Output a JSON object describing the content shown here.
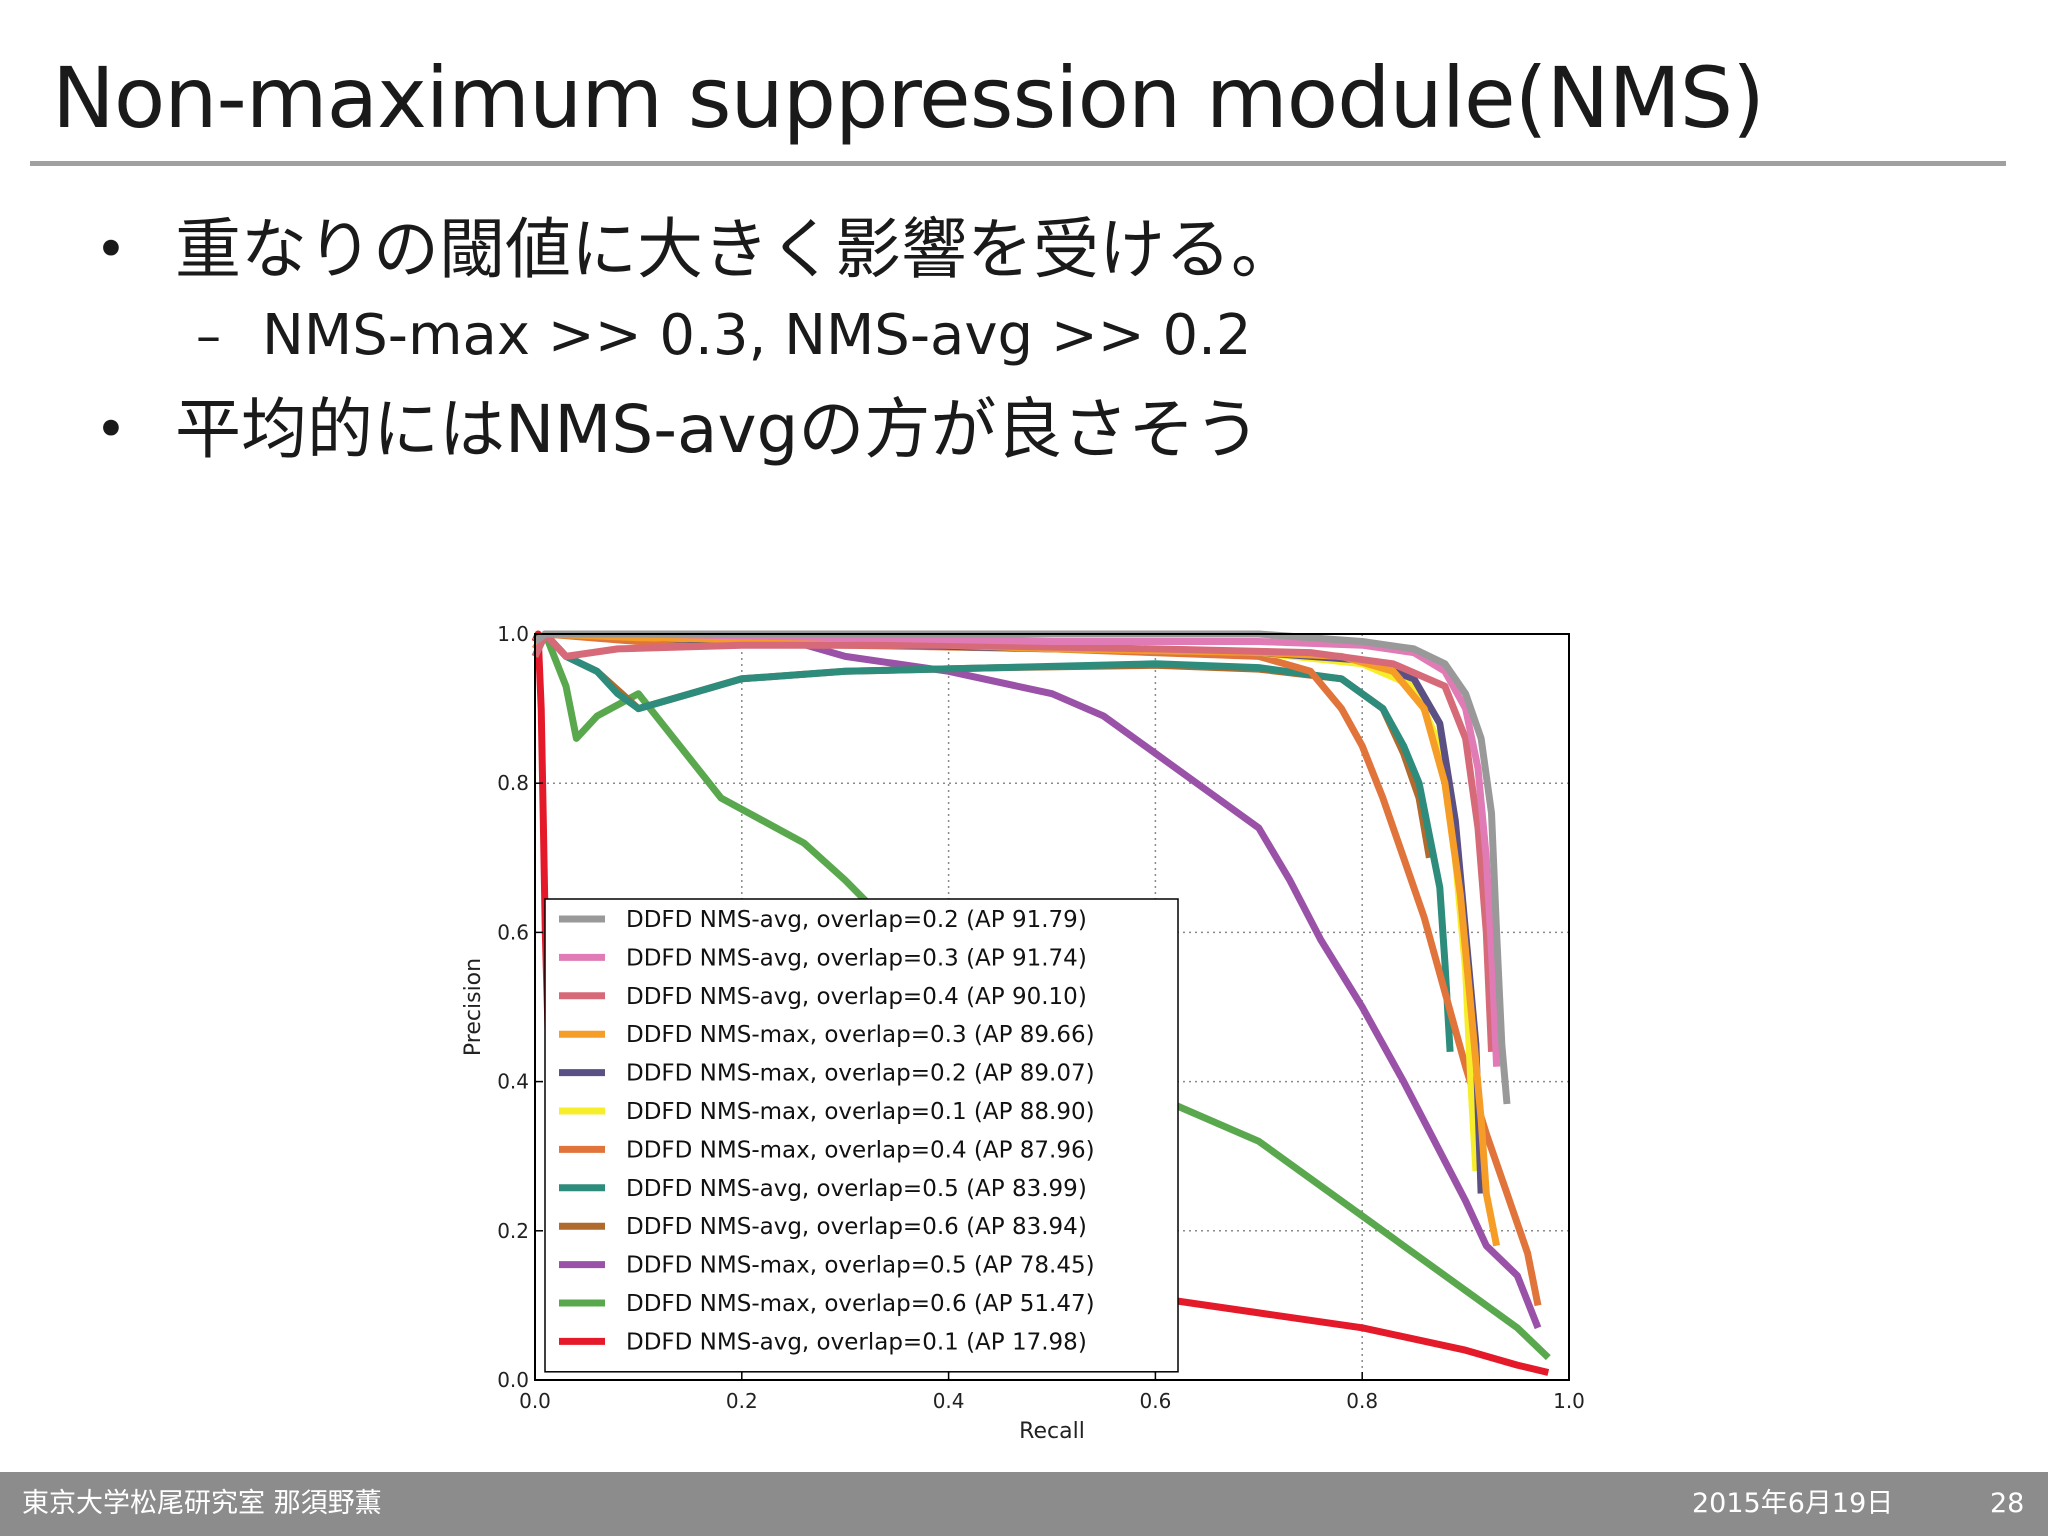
{
  "slide": {
    "title": "Non-maximum suppression module(NMS)",
    "bullets": [
      {
        "marker": "•",
        "text": "重なりの閾値に大きく影響を受ける。"
      },
      {
        "marker": "•",
        "text": "平均的にはNMS-avgの方が良さそう"
      }
    ],
    "sub_bullets": [
      {
        "marker": "–",
        "text": "NMS-max >> 0.3, NMS-avg >> 0.2"
      }
    ]
  },
  "footer": {
    "left": "東京大学松尾研究室 那須野薫",
    "date": "2015年6月19日",
    "page": "28"
  },
  "chart_data": {
    "type": "line",
    "title": "",
    "xlabel": "Recall",
    "ylabel": "Precision",
    "xlim": [
      0.0,
      1.0
    ],
    "ylim": [
      0.0,
      1.0
    ],
    "xticks": [
      "0.0",
      "0.2",
      "0.4",
      "0.6",
      "0.8",
      "1.0"
    ],
    "yticks": [
      "0.0",
      "0.2",
      "0.4",
      "0.6",
      "0.8",
      "1.0"
    ],
    "grid": true,
    "legend_position": "lower-left",
    "series": [
      {
        "name": "DDFD NMS-avg, overlap=0.2 (AP 91.79)",
        "color": "#999999",
        "x": [
          0.0,
          0.01,
          0.1,
          0.3,
          0.5,
          0.7,
          0.8,
          0.85,
          0.88,
          0.9,
          0.915,
          0.925,
          0.93,
          0.935,
          0.94
        ],
        "y": [
          0.99,
          1.0,
          1.0,
          1.0,
          1.0,
          1.0,
          0.99,
          0.98,
          0.96,
          0.92,
          0.86,
          0.76,
          0.6,
          0.45,
          0.37
        ]
      },
      {
        "name": "DDFD NMS-avg, overlap=0.3 (AP 91.74)",
        "color": "#e07bb6",
        "x": [
          0.0,
          0.01,
          0.1,
          0.3,
          0.5,
          0.7,
          0.8,
          0.85,
          0.88,
          0.9,
          0.912,
          0.92,
          0.926,
          0.93
        ],
        "y": [
          0.99,
          1.0,
          1.0,
          0.995,
          0.99,
          0.99,
          0.985,
          0.975,
          0.95,
          0.9,
          0.82,
          0.7,
          0.55,
          0.42
        ]
      },
      {
        "name": "DDFD NMS-avg, overlap=0.4 (AP 90.10)",
        "color": "#d76a78",
        "x": [
          0.0,
          0.01,
          0.03,
          0.08,
          0.2,
          0.4,
          0.6,
          0.75,
          0.83,
          0.88,
          0.9,
          0.912,
          0.92,
          0.925
        ],
        "y": [
          0.97,
          1.0,
          0.97,
          0.98,
          0.985,
          0.985,
          0.98,
          0.975,
          0.96,
          0.93,
          0.86,
          0.74,
          0.6,
          0.44
        ]
      },
      {
        "name": "DDFD NMS-max, overlap=0.3 (AP 89.66)",
        "color": "#f59d26",
        "x": [
          0.0,
          0.01,
          0.1,
          0.3,
          0.5,
          0.7,
          0.78,
          0.83,
          0.86,
          0.88,
          0.895,
          0.905,
          0.915,
          0.92,
          0.93
        ],
        "y": [
          0.98,
          1.0,
          0.995,
          0.99,
          0.98,
          0.975,
          0.97,
          0.95,
          0.9,
          0.8,
          0.65,
          0.5,
          0.35,
          0.25,
          0.18
        ]
      },
      {
        "name": "DDFD NMS-max, overlap=0.2 (AP 89.07)",
        "color": "#5a5083",
        "x": [
          0.0,
          0.01,
          0.2,
          0.5,
          0.7,
          0.8,
          0.85,
          0.875,
          0.89,
          0.9,
          0.91,
          0.915
        ],
        "y": [
          0.99,
          1.0,
          0.99,
          0.98,
          0.975,
          0.965,
          0.94,
          0.88,
          0.75,
          0.6,
          0.45,
          0.25
        ]
      },
      {
        "name": "DDFD NMS-max, overlap=0.1 (AP 88.90)",
        "color": "#f6ee2b",
        "x": [
          0.0,
          0.01,
          0.2,
          0.5,
          0.7,
          0.8,
          0.85,
          0.875,
          0.89,
          0.9,
          0.905,
          0.91
        ],
        "y": [
          0.99,
          1.0,
          0.99,
          0.98,
          0.975,
          0.96,
          0.93,
          0.85,
          0.7,
          0.55,
          0.4,
          0.28
        ]
      },
      {
        "name": "DDFD NMS-max, overlap=0.4 (AP 87.96)",
        "color": "#e0743a",
        "x": [
          0.0,
          0.01,
          0.1,
          0.3,
          0.5,
          0.7,
          0.75,
          0.78,
          0.8,
          0.82,
          0.84,
          0.86,
          0.88,
          0.9,
          0.92,
          0.94,
          0.96,
          0.97
        ],
        "y": [
          0.98,
          1.0,
          0.99,
          0.985,
          0.98,
          0.97,
          0.95,
          0.9,
          0.85,
          0.78,
          0.7,
          0.62,
          0.52,
          0.42,
          0.33,
          0.25,
          0.17,
          0.1
        ]
      },
      {
        "name": "DDFD NMS-avg, overlap=0.5 (AP 83.99)",
        "color": "#2e8c7c",
        "x": [
          0.0,
          0.01,
          0.03,
          0.06,
          0.08,
          0.1,
          0.15,
          0.2,
          0.3,
          0.45,
          0.6,
          0.7,
          0.78,
          0.82,
          0.84,
          0.855,
          0.865,
          0.875,
          0.88,
          0.885
        ],
        "y": [
          0.97,
          1.0,
          0.97,
          0.95,
          0.92,
          0.9,
          0.92,
          0.94,
          0.95,
          0.955,
          0.96,
          0.955,
          0.94,
          0.9,
          0.85,
          0.8,
          0.73,
          0.66,
          0.56,
          0.44
        ]
      },
      {
        "name": "DDFD NMS-avg, overlap=0.6 (AP 83.94)",
        "color": "#b06a2e",
        "x": [
          0.0,
          0.01,
          0.03,
          0.06,
          0.1,
          0.15,
          0.2,
          0.3,
          0.45,
          0.6,
          0.7,
          0.78,
          0.82,
          0.84,
          0.855,
          0.865
        ],
        "y": [
          0.97,
          1.0,
          0.97,
          0.95,
          0.9,
          0.92,
          0.94,
          0.95,
          0.955,
          0.958,
          0.953,
          0.94,
          0.9,
          0.84,
          0.78,
          0.7
        ]
      },
      {
        "name": "DDFD NMS-max, overlap=0.5 (AP 78.45)",
        "color": "#9a52a8",
        "x": [
          0.0,
          0.01,
          0.1,
          0.2,
          0.25,
          0.3,
          0.4,
          0.5,
          0.55,
          0.6,
          0.65,
          0.7,
          0.73,
          0.76,
          0.8,
          0.84,
          0.87,
          0.9,
          0.92,
          0.95,
          0.97
        ],
        "y": [
          0.98,
          1.0,
          1.0,
          0.995,
          0.99,
          0.97,
          0.95,
          0.92,
          0.89,
          0.84,
          0.79,
          0.74,
          0.67,
          0.59,
          0.5,
          0.4,
          0.32,
          0.24,
          0.18,
          0.14,
          0.07
        ]
      },
      {
        "name": "DDFD NMS-max, overlap=0.6 (AP 51.47)",
        "color": "#5aa84e",
        "x": [
          0.0,
          0.01,
          0.03,
          0.04,
          0.06,
          0.1,
          0.14,
          0.18,
          0.22,
          0.26,
          0.3,
          0.35,
          0.4,
          0.6,
          0.7,
          0.8,
          0.9,
          0.95,
          0.98
        ],
        "y": [
          0.98,
          1.0,
          0.93,
          0.86,
          0.89,
          0.92,
          0.85,
          0.78,
          0.75,
          0.72,
          0.67,
          0.6,
          0.53,
          0.38,
          0.32,
          0.22,
          0.12,
          0.07,
          0.03
        ]
      },
      {
        "name": "DDFD NMS-avg, overlap=0.1 (AP 17.98)",
        "color": "#e41a2a",
        "x": [
          0.0,
          0.003,
          0.006,
          0.008,
          0.01,
          0.013,
          0.016,
          0.02,
          0.05,
          0.1,
          0.2,
          0.3,
          0.4,
          0.5,
          0.6,
          0.7,
          0.8,
          0.9,
          0.95,
          0.98
        ],
        "y": [
          0.99,
          1.0,
          0.9,
          0.75,
          0.6,
          0.45,
          0.35,
          0.3,
          0.25,
          0.22,
          0.18,
          0.16,
          0.14,
          0.13,
          0.11,
          0.09,
          0.07,
          0.04,
          0.02,
          0.01
        ]
      }
    ]
  }
}
